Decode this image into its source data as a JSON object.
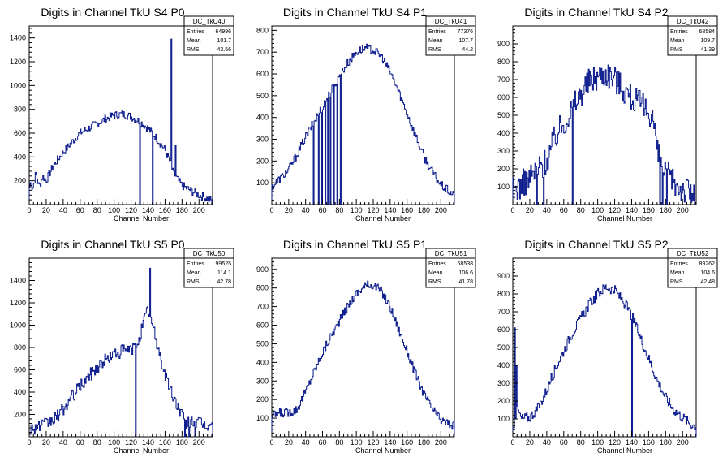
{
  "chart_data": [
    {
      "type": "histogram",
      "title": "Digits in Channel TkU S4 P0",
      "xlabel": "Channel Number",
      "ylabel": "",
      "xlim": [
        0,
        216
      ],
      "ylim": [
        0,
        1500
      ],
      "xticks": [
        0,
        20,
        40,
        60,
        80,
        100,
        120,
        140,
        160,
        180,
        200
      ],
      "yticks": [
        200,
        400,
        600,
        800,
        1000,
        1200,
        1400
      ],
      "stats": {
        "name": "DC_TkU40",
        "entries_label": "Entries",
        "entries": "64996",
        "mean_label": "Mean",
        "mean": "101.7",
        "rms_label": "RMS",
        "rms": "43.56"
      },
      "profile": [
        [
          0,
          120
        ],
        [
          2,
          200
        ],
        [
          4,
          130
        ],
        [
          8,
          260
        ],
        [
          12,
          150
        ],
        [
          16,
          240
        ],
        [
          20,
          200
        ],
        [
          28,
          320
        ],
        [
          36,
          400
        ],
        [
          44,
          470
        ],
        [
          52,
          540
        ],
        [
          60,
          600
        ],
        [
          70,
          640
        ],
        [
          80,
          680
        ],
        [
          90,
          720
        ],
        [
          100,
          750
        ],
        [
          110,
          760
        ],
        [
          120,
          740
        ],
        [
          130,
          700
        ],
        [
          140,
          640
        ],
        [
          150,
          560
        ],
        [
          160,
          460
        ],
        [
          165,
          380
        ],
        [
          170,
          260
        ],
        [
          180,
          160
        ],
        [
          190,
          120
        ],
        [
          200,
          80
        ],
        [
          210,
          50
        ],
        [
          216,
          30
        ]
      ],
      "spikes": [
        [
          130,
          0
        ],
        [
          145,
          0
        ],
        [
          167,
          1390
        ],
        [
          172,
          500
        ]
      ],
      "noise": 35
    },
    {
      "type": "histogram",
      "title": "Digits in Channel TkU S4 P1",
      "xlabel": "Channel Number",
      "ylabel": "",
      "xlim": [
        0,
        216
      ],
      "ylim": [
        0,
        820
      ],
      "xticks": [
        0,
        20,
        40,
        60,
        80,
        100,
        120,
        140,
        160,
        180,
        200
      ],
      "yticks": [
        100,
        200,
        300,
        400,
        500,
        600,
        700,
        800
      ],
      "stats": {
        "name": "DC_TkU41",
        "entries_label": "Entries",
        "entries": "77376",
        "mean_label": "Mean",
        "mean": "107.7",
        "rms_label": "RMS",
        "rms": "44.2"
      },
      "profile": [
        [
          0,
          80
        ],
        [
          10,
          120
        ],
        [
          20,
          160
        ],
        [
          30,
          230
        ],
        [
          40,
          310
        ],
        [
          50,
          380
        ],
        [
          60,
          450
        ],
        [
          70,
          520
        ],
        [
          80,
          590
        ],
        [
          90,
          650
        ],
        [
          100,
          700
        ],
        [
          110,
          720
        ],
        [
          120,
          710
        ],
        [
          130,
          680
        ],
        [
          140,
          610
        ],
        [
          150,
          520
        ],
        [
          160,
          420
        ],
        [
          170,
          320
        ],
        [
          180,
          220
        ],
        [
          190,
          150
        ],
        [
          200,
          90
        ],
        [
          210,
          60
        ],
        [
          216,
          40
        ]
      ],
      "spikes": [
        [
          49,
          0
        ],
        [
          55,
          0
        ],
        [
          59,
          0
        ],
        [
          63,
          0
        ],
        [
          66,
          0
        ],
        [
          69,
          0
        ],
        [
          73,
          0
        ],
        [
          77,
          0
        ],
        [
          81,
          0
        ]
      ],
      "noise": 20
    },
    {
      "type": "histogram",
      "title": "Digits in Channel TkU S4 P2",
      "xlabel": "Channel Number",
      "ylabel": "",
      "xlim": [
        0,
        216
      ],
      "ylim": [
        0,
        1000
      ],
      "xticks": [
        0,
        20,
        40,
        60,
        80,
        100,
        120,
        140,
        160,
        180,
        200
      ],
      "yticks": [
        100,
        200,
        300,
        400,
        500,
        600,
        700,
        800,
        900
      ],
      "stats": {
        "name": "DC_TkU42",
        "entries_label": "Entries",
        "entries": "68584",
        "mean_label": "Mean",
        "mean": "109.7",
        "rms_label": "RMS",
        "rms": "41.39"
      },
      "profile": [
        [
          0,
          80
        ],
        [
          10,
          110
        ],
        [
          20,
          150
        ],
        [
          30,
          200
        ],
        [
          40,
          250
        ],
        [
          50,
          380
        ],
        [
          60,
          460
        ],
        [
          70,
          540
        ],
        [
          80,
          620
        ],
        [
          90,
          690
        ],
        [
          100,
          720
        ],
        [
          110,
          740
        ],
        [
          120,
          710
        ],
        [
          130,
          650
        ],
        [
          140,
          600
        ],
        [
          150,
          560
        ],
        [
          160,
          520
        ],
        [
          165,
          500
        ],
        [
          170,
          300
        ],
        [
          175,
          220
        ],
        [
          180,
          180
        ],
        [
          190,
          120
        ],
        [
          200,
          90
        ],
        [
          210,
          70
        ],
        [
          216,
          10
        ]
      ],
      "spikes": [
        [
          28,
          0
        ],
        [
          36,
          0
        ],
        [
          70,
          0
        ],
        [
          173,
          0
        ],
        [
          176,
          0
        ],
        [
          181,
          0
        ]
      ],
      "noise": 80
    },
    {
      "type": "histogram",
      "title": "Digits in Channel TkU S5 P0",
      "xlabel": "Channel Number",
      "ylabel": "",
      "xlim": [
        0,
        216
      ],
      "ylim": [
        0,
        1600
      ],
      "xticks": [
        0,
        20,
        40,
        60,
        80,
        100,
        120,
        140,
        160,
        180,
        200
      ],
      "yticks": [
        200,
        400,
        600,
        800,
        1000,
        1200,
        1400
      ],
      "stats": {
        "name": "DC_TkU50",
        "entries_label": "Entries",
        "entries": "99525",
        "mean_label": "Mean",
        "mean": "114.1",
        "rms_label": "RMS",
        "rms": "42.78"
      },
      "profile": [
        [
          0,
          70
        ],
        [
          10,
          90
        ],
        [
          20,
          110
        ],
        [
          30,
          160
        ],
        [
          40,
          240
        ],
        [
          50,
          350
        ],
        [
          60,
          450
        ],
        [
          70,
          540
        ],
        [
          80,
          620
        ],
        [
          90,
          690
        ],
        [
          100,
          740
        ],
        [
          110,
          770
        ],
        [
          120,
          780
        ],
        [
          125,
          800
        ],
        [
          130,
          900
        ],
        [
          140,
          1150
        ],
        [
          145,
          1000
        ],
        [
          150,
          850
        ],
        [
          160,
          560
        ],
        [
          170,
          350
        ],
        [
          180,
          200
        ],
        [
          185,
          100
        ],
        [
          190,
          150
        ],
        [
          200,
          120
        ],
        [
          210,
          100
        ],
        [
          216,
          120
        ]
      ],
      "spikes": [
        [
          125,
          0
        ],
        [
          142,
          1510
        ],
        [
          183,
          0
        ],
        [
          188,
          0
        ],
        [
          195,
          0
        ]
      ],
      "noise": 60
    },
    {
      "type": "histogram",
      "title": "Digits in Channel TkU S5 P1",
      "xlabel": "Channel Number",
      "ylabel": "",
      "xlim": [
        0,
        216
      ],
      "ylim": [
        0,
        960
      ],
      "xticks": [
        0,
        20,
        40,
        60,
        80,
        100,
        120,
        140,
        160,
        180,
        200
      ],
      "yticks": [
        100,
        200,
        300,
        400,
        500,
        600,
        700,
        800,
        900
      ],
      "stats": {
        "name": "DC_TkU51",
        "entries_label": "Entries",
        "entries": "68538",
        "mean_label": "Mean",
        "mean": "106.6",
        "rms_label": "RMS",
        "rms": "41.78"
      },
      "profile": [
        [
          0,
          110
        ],
        [
          10,
          130
        ],
        [
          20,
          130
        ],
        [
          30,
          150
        ],
        [
          40,
          240
        ],
        [
          50,
          350
        ],
        [
          60,
          450
        ],
        [
          70,
          540
        ],
        [
          80,
          620
        ],
        [
          90,
          700
        ],
        [
          100,
          770
        ],
        [
          110,
          810
        ],
        [
          120,
          820
        ],
        [
          130,
          780
        ],
        [
          140,
          700
        ],
        [
          150,
          580
        ],
        [
          160,
          460
        ],
        [
          170,
          340
        ],
        [
          180,
          230
        ],
        [
          190,
          150
        ],
        [
          200,
          90
        ],
        [
          210,
          70
        ],
        [
          216,
          60
        ]
      ],
      "spikes": [],
      "noise": 25
    },
    {
      "type": "histogram",
      "title": "Digits in Channel TkU S5 P2",
      "xlabel": "Channel Number",
      "ylabel": "",
      "xlim": [
        0,
        216
      ],
      "ylim": [
        0,
        1000
      ],
      "xticks": [
        0,
        20,
        40,
        60,
        80,
        100,
        120,
        140,
        160,
        180,
        200
      ],
      "yticks": [
        100,
        200,
        300,
        400,
        500,
        600,
        700,
        800,
        900
      ],
      "stats": {
        "name": "DC_TkU52",
        "entries_label": "Entries",
        "entries": "89262",
        "mean_label": "Mean",
        "mean": "104.6",
        "rms_label": "RMS",
        "rms": "42.48"
      },
      "profile": [
        [
          0,
          30
        ],
        [
          3,
          120
        ],
        [
          6,
          150
        ],
        [
          10,
          100
        ],
        [
          20,
          110
        ],
        [
          30,
          160
        ],
        [
          40,
          260
        ],
        [
          50,
          380
        ],
        [
          60,
          480
        ],
        [
          70,
          580
        ],
        [
          80,
          660
        ],
        [
          90,
          740
        ],
        [
          100,
          800
        ],
        [
          110,
          840
        ],
        [
          120,
          820
        ],
        [
          130,
          760
        ],
        [
          140,
          680
        ],
        [
          150,
          560
        ],
        [
          160,
          440
        ],
        [
          170,
          320
        ],
        [
          180,
          220
        ],
        [
          190,
          150
        ],
        [
          200,
          110
        ],
        [
          210,
          70
        ],
        [
          216,
          60
        ]
      ],
      "spikes": [
        [
          2,
          610
        ],
        [
          4,
          400
        ],
        [
          140,
          0
        ]
      ],
      "noise": 30
    }
  ]
}
